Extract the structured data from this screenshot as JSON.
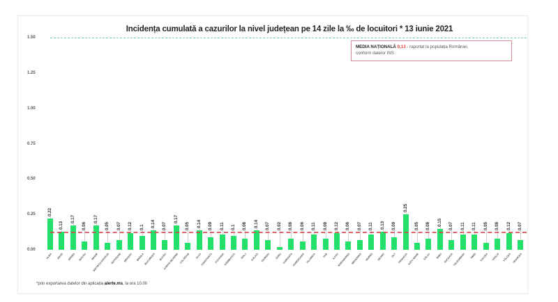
{
  "title": "Incidența cumulată a cazurilor la nivel județean pe 14 zile la ‰ de locuitori *  13 iunie 2021",
  "legend": {
    "label_bold": "MEDIA NAȚIONALĂ",
    "value": "0,13",
    "text_line1": " - raportat la populația României,",
    "text_line2": "conform datelor INS"
  },
  "footnote": {
    "prefix": "*prin exportarea datelor din aplicația ",
    "bold": "alerte.ms",
    "suffix": ", la ora 10.00"
  },
  "colors": {
    "bar": "#22e06a",
    "average_line": "#d84a4a",
    "max_line": "#6fd39c",
    "legend_border": "#d88a93",
    "legend_value": "#e0343c"
  },
  "chart_data": {
    "type": "bar",
    "title": "Incidența cumulată a cazurilor la nivel județean pe 14 zile la ‰ de locuitori * 13 iunie 2021",
    "xlabel": "",
    "ylabel": "",
    "ylim": [
      0,
      1.5
    ],
    "yticks": [
      "0.00",
      "0.25",
      "0.50",
      "0.75",
      "1.00",
      "1.25",
      "1.50"
    ],
    "grid": false,
    "reference_lines": [
      {
        "name": "Media națională",
        "value": 0.13,
        "style": "dashed",
        "color": "#d84a4a"
      },
      {
        "name": "Prag 1.5",
        "value": 1.5,
        "style": "dashed",
        "color": "#6fd39c"
      }
    ],
    "categories": [
      "ALBA",
      "ARAD",
      "ARGEȘ",
      "BACĂU",
      "BIHOR",
      "BISTRIȚA-NĂSĂUD",
      "BOTOȘANI",
      "BRAȘOV",
      "BRĂILA",
      "BUCUREȘTI",
      "BUZĂU",
      "CARAȘ-SEVERIN",
      "CĂLĂRAȘI",
      "CLUJ",
      "CONSTANȚA",
      "COVASNA",
      "DÂMBOVIȚA",
      "DOLJ",
      "GALAȚI",
      "GIURGIU",
      "GORJ",
      "HARGHITA",
      "HUNEDOARA",
      "IALOMIȚA",
      "IAȘI",
      "ILFOV",
      "MARAMUREȘ",
      "MEHEDINȚI",
      "MUREȘ",
      "NEAMȚ",
      "OLT",
      "PRAHOVA",
      "SATU MARE",
      "SĂLAJ",
      "SIBIU",
      "SUCEAVA",
      "TELEORMAN",
      "TIMIȘ",
      "TULCEA",
      "VASLUI",
      "VÂLCEA",
      "VRANCEA"
    ],
    "values": [
      0.22,
      0.13,
      0.17,
      0.06,
      0.17,
      0.05,
      0.07,
      0.12,
      0.1,
      0.14,
      0.07,
      0.17,
      0.05,
      0.14,
      0.09,
      0.11,
      0.1,
      0.08,
      0.14,
      0.07,
      0.02,
      0.08,
      0.06,
      0.11,
      0.08,
      0.12,
      0.06,
      0.07,
      0.11,
      0.13,
      0.09,
      0.25,
      0.05,
      0.08,
      0.15,
      0.07,
      0.11,
      0.11,
      0.05,
      0.08,
      0.12,
      0.07
    ],
    "value_labels": [
      "0.22",
      "0.13",
      "0.17",
      "0.06",
      "0.17",
      "0.05",
      "0.07",
      "0.12",
      "0.1",
      "0.14",
      "0.07",
      "0.17",
      "0.05",
      "0.14",
      "0.09",
      "0.11",
      "0.1",
      "0.08",
      "0.14",
      "0.07",
      "0.02",
      "0.08",
      "0.06",
      "0.11",
      "0.08",
      "0.12",
      "0.06",
      "0.07",
      "0.11",
      "0.13",
      "0.09",
      "0.25",
      "0.05",
      "0.08",
      "0.15",
      "0.07",
      "0.11",
      "0.11",
      "0.05",
      "0.08",
      "0.12",
      "0.07"
    ],
    "legend_position": "top-right"
  }
}
